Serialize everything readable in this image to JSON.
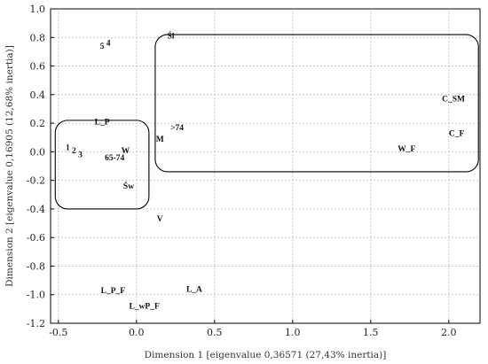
{
  "chart_data": {
    "type": "scatter",
    "title": "",
    "xlabel": "Dimension 1 [eigenvalue 0,36571 (27,43% inertia)]",
    "ylabel": "Dimension 2 [eigenvalue 0,16905 (12,68% inertia)]",
    "xlim": [
      -0.55,
      2.2
    ],
    "ylim": [
      -1.2,
      1.0
    ],
    "xticks": [
      -0.5,
      0.0,
      0.5,
      1.0,
      1.5,
      2.0
    ],
    "xtick_labels": [
      "-0.5",
      "0.0",
      "0.5",
      "1.0",
      "1.5",
      "2.0"
    ],
    "yticks": [
      -1.2,
      -1.0,
      -0.8,
      -0.6,
      -0.4,
      -0.2,
      0.0,
      0.2,
      0.4,
      0.6,
      0.8,
      1.0
    ],
    "ytick_labels": [
      "-1.2",
      "-1.0",
      "-0.8",
      "-0.6",
      "-0.4",
      "-0.2",
      "0.0",
      "0.2",
      "0.4",
      "0.6",
      "0.8",
      "1.0"
    ],
    "grid": true,
    "points": [
      {
        "label": "5",
        "x": -0.22,
        "y": 0.74
      },
      {
        "label": "4",
        "x": -0.18,
        "y": 0.76
      },
      {
        "label": "Śl",
        "x": 0.22,
        "y": 0.81
      },
      {
        "label": "C_SM",
        "x": 2.03,
        "y": 0.37
      },
      {
        "label": "C_F",
        "x": 2.05,
        "y": 0.13
      },
      {
        "label": "L_P",
        "x": -0.22,
        "y": 0.21
      },
      {
        "label": ">74",
        "x": 0.26,
        "y": 0.17
      },
      {
        "label": "M",
        "x": 0.15,
        "y": 0.09
      },
      {
        "label": "W_F",
        "x": 1.73,
        "y": 0.02
      },
      {
        "label": "1",
        "x": -0.44,
        "y": 0.03
      },
      {
        "label": "2",
        "x": -0.4,
        "y": 0.01
      },
      {
        "label": "3",
        "x": -0.36,
        "y": -0.02
      },
      {
        "label": "W",
        "x": -0.07,
        "y": 0.01
      },
      {
        "label": "65-74",
        "x": -0.14,
        "y": -0.04
      },
      {
        "label": "Św",
        "x": -0.05,
        "y": -0.24
      },
      {
        "label": "V",
        "x": 0.15,
        "y": -0.47
      },
      {
        "label": "L_P_F",
        "x": -0.15,
        "y": -0.97
      },
      {
        "label": "L_A",
        "x": 0.37,
        "y": -0.96
      },
      {
        "label": "L_wP_F",
        "x": 0.05,
        "y": -1.08
      }
    ],
    "groups": [
      {
        "x0": -0.52,
        "x1": 0.08,
        "y0": -0.4,
        "y1": 0.22
      },
      {
        "x0": 0.12,
        "x1": 2.19,
        "y0": -0.14,
        "y1": 0.82
      }
    ]
  }
}
